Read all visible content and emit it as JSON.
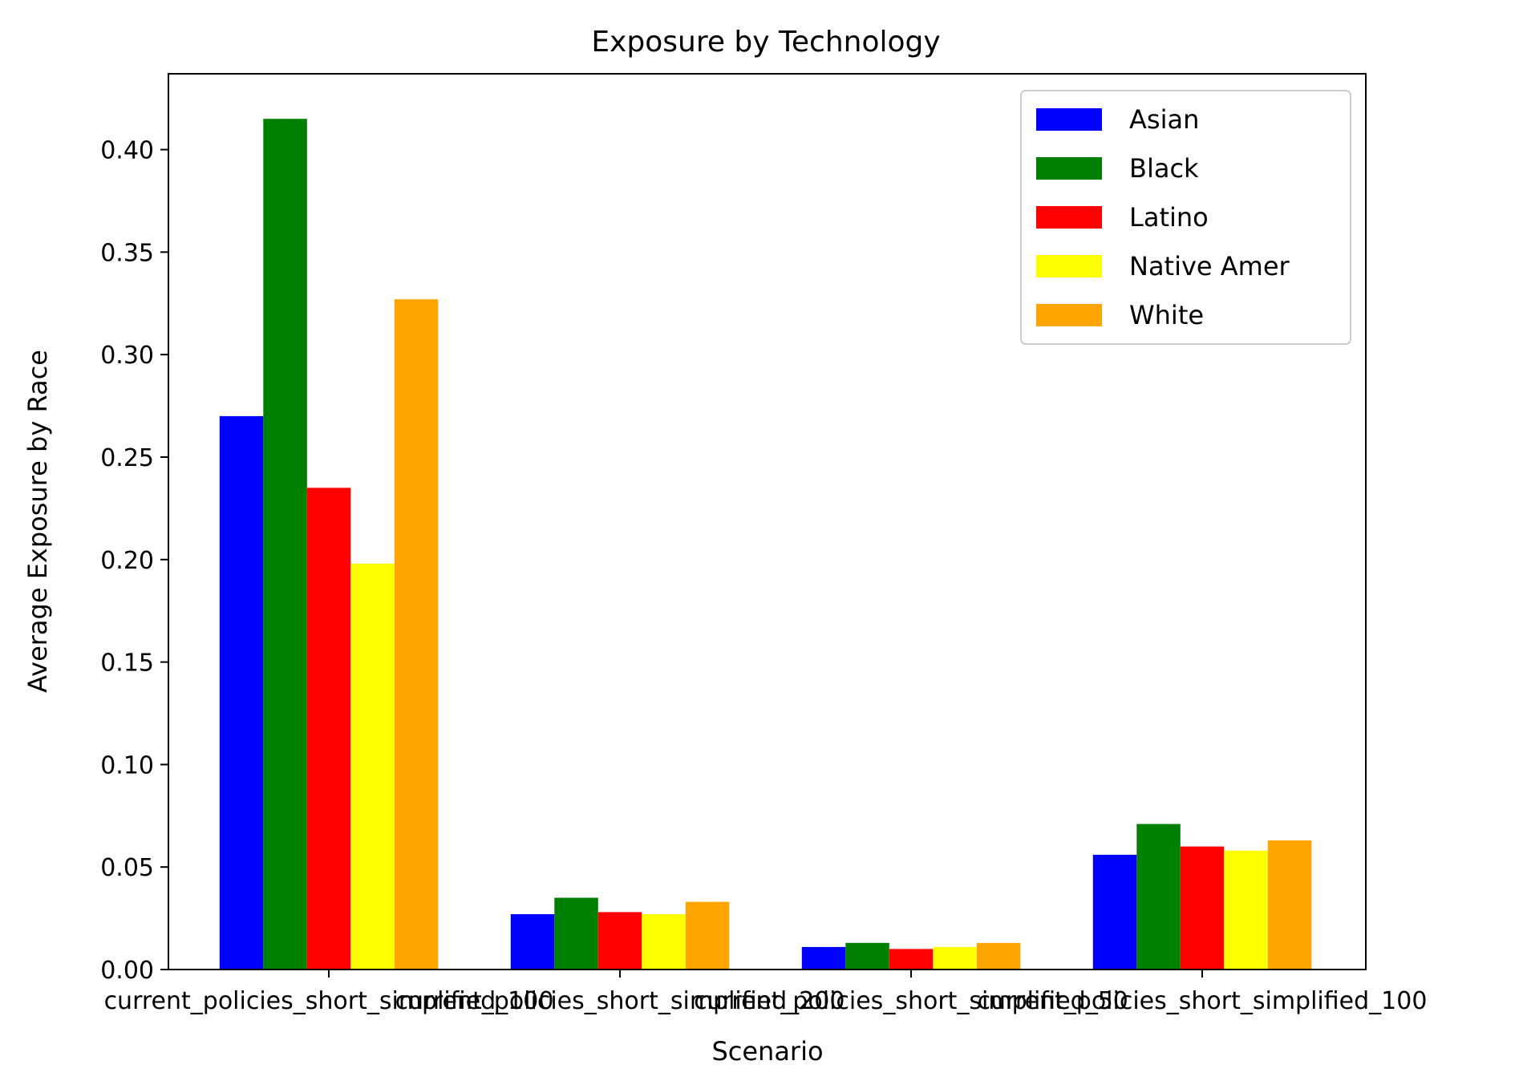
{
  "chart_data": {
    "type": "bar",
    "title": "Exposure by Technology",
    "xlabel": "Scenario",
    "ylabel": "Average Exposure by Race",
    "categories": [
      "current_policies_short_simplified_100",
      "current_policies_short_simplified_200",
      "current_policies_short_simplified_50",
      "current_policies_short_simplified_100"
    ],
    "category_labels_rendered": [
      "current_policies_short_simplified_100",
      "current_policies_short_simplified_200",
      "current_policies_short_simplified_50",
      "current_policies_short_simplified_100"
    ],
    "series": [
      {
        "name": "Asian",
        "color": "#0000ff",
        "values": [
          0.27,
          0.027,
          0.011,
          0.056
        ]
      },
      {
        "name": "Black",
        "color": "#008000",
        "values": [
          0.415,
          0.035,
          0.013,
          0.071
        ]
      },
      {
        "name": "Latino",
        "color": "#ff0000",
        "values": [
          0.235,
          0.028,
          0.01,
          0.06
        ]
      },
      {
        "name": "Native Amer",
        "color": "#ffff00",
        "values": [
          0.198,
          0.027,
          0.011,
          0.058
        ]
      },
      {
        "name": "White",
        "color": "#ffa500",
        "values": [
          0.327,
          0.033,
          0.013,
          0.063
        ]
      }
    ],
    "yticks": [
      "0.00",
      "0.05",
      "0.10",
      "0.15",
      "0.20",
      "0.25",
      "0.30",
      "0.35",
      "0.40"
    ],
    "ylim": [
      0,
      0.437
    ],
    "legend_position": "top-right",
    "grid": false
  }
}
